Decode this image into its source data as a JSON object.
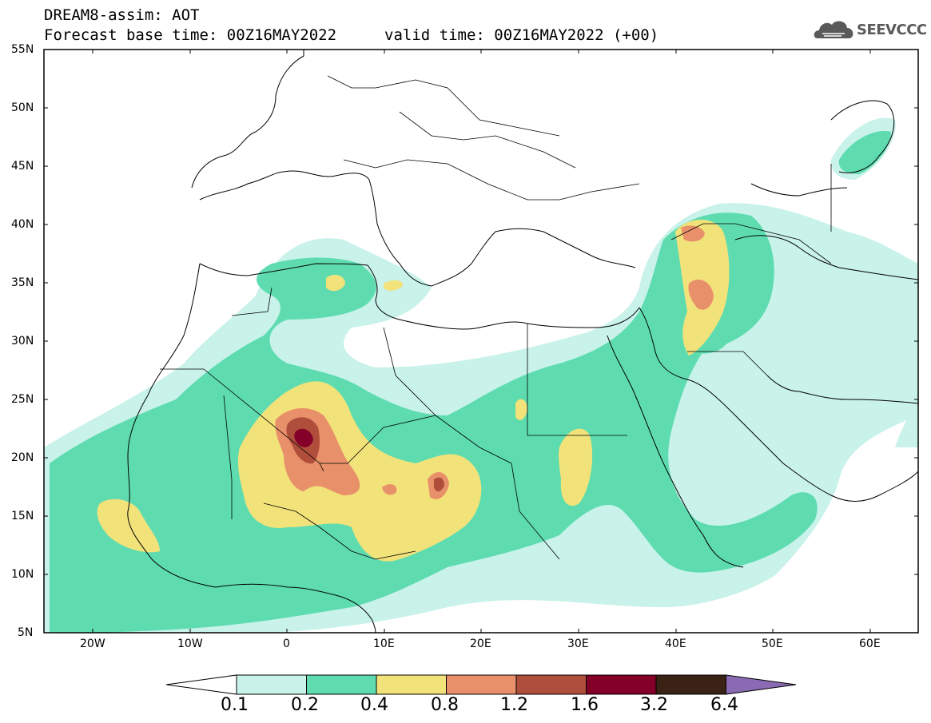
{
  "header": {
    "title": "DREAM8-assim: AOT",
    "base_time": "Forecast base time: 00Z16MAY2022",
    "valid_time": "valid time: 00Z16MAY2022 (+00)",
    "logo_text": "SEEVCCC",
    "logo_icon": "cloud-icon"
  },
  "map": {
    "variable": "AOT",
    "lon_range": [
      -25,
      65
    ],
    "lat_range": [
      5,
      55
    ],
    "lat_ticks": [
      "55N",
      "50N",
      "45N",
      "40N",
      "35N",
      "30N",
      "25N",
      "20N",
      "15N",
      "10N",
      "5N"
    ],
    "lon_ticks": [
      "20W",
      "10W",
      "0",
      "10E",
      "20E",
      "30E",
      "40E",
      "50E",
      "60E"
    ]
  },
  "colorbar": {
    "levels": [
      "0.1",
      "0.2",
      "0.4",
      "0.8",
      "1.2",
      "1.6",
      "3.2",
      "6.4"
    ],
    "colors": [
      "#ffffff",
      "#c8f2ea",
      "#5edcb0",
      "#f2e27a",
      "#e8906a",
      "#b04e3c",
      "#840028",
      "#3a2214",
      "#8a6ab2"
    ]
  }
}
